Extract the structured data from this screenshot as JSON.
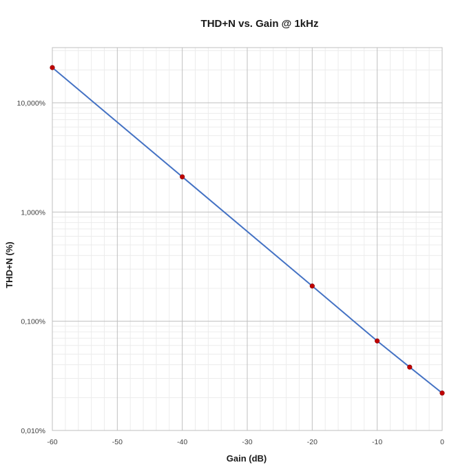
{
  "chart_data": {
    "type": "line",
    "title": "THD+N vs. Gain @ 1kHz",
    "xlabel": "Gain (dB)",
    "ylabel": "THD+N  (%)",
    "x_scale": "linear",
    "y_scale": "log",
    "xlim": [
      -60,
      0
    ],
    "ylim": [
      0.01,
      32
    ],
    "x_ticks": [
      -60,
      -50,
      -40,
      -30,
      -20,
      -10,
      0
    ],
    "x_tick_labels": [
      "-60",
      "-50",
      "-40",
      "-30",
      "-20",
      "-10",
      "0"
    ],
    "y_ticks": [
      0.01,
      0.1,
      1,
      10
    ],
    "y_tick_labels": [
      "0,010%",
      "0,100%",
      "1,000%",
      "10,000%"
    ],
    "grid": true,
    "minor_grid": true,
    "legend": "none",
    "series": [
      {
        "line_color": "#4472c4",
        "marker_color": "#c00000",
        "x": [
          -60,
          -40,
          -20,
          -10,
          -5,
          0
        ],
        "y": [
          21,
          2.1,
          0.21,
          0.066,
          0.038,
          0.022
        ]
      }
    ]
  }
}
